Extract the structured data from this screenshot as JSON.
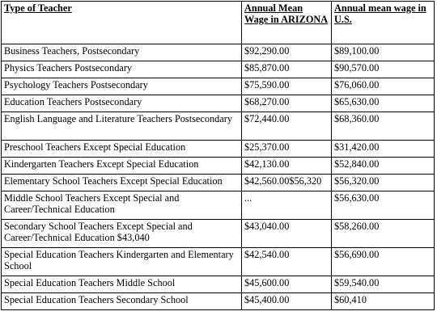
{
  "table": {
    "headers": [
      "Type of Teacher",
      "Annual Mean Wage in ARIZONA",
      "Annual mean wage in U.S."
    ],
    "rows": [
      [
        "Business Teachers, Postsecondary",
        "$92,290.00",
        "$89,100.00"
      ],
      [
        "Physics Teachers Postsecondary",
        "$85,870.00",
        "$90,570.00"
      ],
      [
        "Psychology Teachers Postsecondary",
        "$75,590.00",
        "$76,060.00"
      ],
      [
        "Education Teachers Postsecondary",
        "$68,270.00",
        "$65,630.00"
      ],
      [
        "English Language and Literature Teachers Postsecondary",
        "$72,440.00",
        "$68,360.00"
      ],
      [
        "Preschool Teachers Except Special Education",
        "$25,370.00",
        "$31,420.00"
      ],
      [
        "Kindergarten Teachers Except Special Education",
        "$42,130.00",
        "$52,840.00"
      ],
      [
        "Elementary School Teachers Except Special Education",
        "$42,560.00$56,320",
        "$56,320.00"
      ],
      [
        "Middle School Teachers Except Special and Career/Technical Education",
        "...",
        "$56,630.00"
      ],
      [
        "Secondary School Teachers Except Special and Career/Technical Education $43,040",
        "$43,040.00",
        "$58,260.00"
      ],
      [
        "Special Education Teachers Kindergarten and Elementary School",
        "$42,540.00",
        "$56,690.00"
      ],
      [
        "Special Education Teachers Middle School",
        "$45,600.00",
        "$59,540.00"
      ],
      [
        "Special Education Teachers Secondary School",
        "$45,400.00",
        "$60,410"
      ]
    ]
  }
}
